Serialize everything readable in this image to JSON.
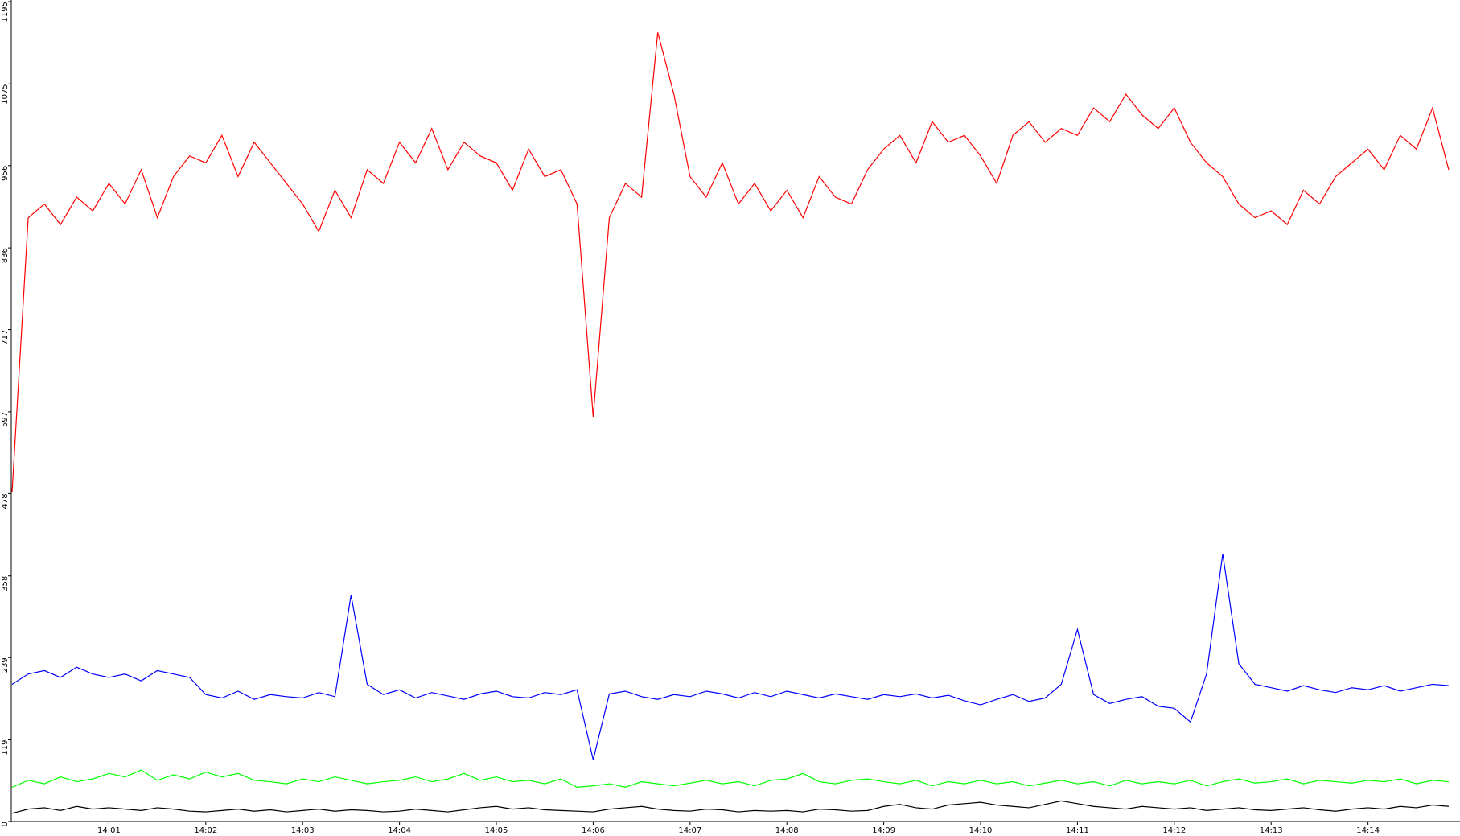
{
  "chart_data": {
    "type": "line",
    "categories": [
      null,
      null,
      null,
      null,
      null,
      null,
      "14:01",
      null,
      null,
      null,
      null,
      null,
      "14:02",
      null,
      null,
      null,
      null,
      null,
      "14:03",
      null,
      null,
      null,
      null,
      null,
      "14:04",
      null,
      null,
      null,
      null,
      null,
      "14:05",
      null,
      null,
      null,
      null,
      null,
      "14:06",
      null,
      null,
      null,
      null,
      null,
      "14:07",
      null,
      null,
      null,
      null,
      null,
      "14:08",
      null,
      null,
      null,
      null,
      null,
      "14:09",
      null,
      null,
      null,
      null,
      null,
      "14:10",
      null,
      null,
      null,
      null,
      null,
      "14:11",
      null,
      null,
      null,
      null,
      null,
      "14:12",
      null,
      null,
      null,
      null,
      null,
      "14:13",
      null,
      null,
      null,
      null,
      null,
      "14:14",
      null,
      null,
      null,
      null,
      null
    ],
    "series": [
      {
        "color": "#ff0000",
        "values": [
          480,
          880,
          900,
          870,
          910,
          890,
          930,
          900,
          950,
          880,
          940,
          970,
          960,
          1000,
          940,
          990,
          960,
          930,
          900,
          860,
          920,
          880,
          950,
          930,
          990,
          960,
          1010,
          950,
          990,
          970,
          960,
          920,
          980,
          940,
          950,
          900,
          590,
          880,
          930,
          910,
          1150,
          1060,
          940,
          910,
          960,
          900,
          930,
          890,
          920,
          880,
          940,
          910,
          900,
          950,
          980,
          1000,
          960,
          1020,
          990,
          1000,
          970,
          930,
          1000,
          1020,
          990,
          1010,
          1000,
          1040,
          1020,
          1060,
          1030,
          1010,
          1040,
          990,
          960,
          940,
          900,
          880,
          890,
          870,
          920,
          900,
          940,
          960,
          980,
          950,
          1000,
          980,
          1040,
          950
        ]
      },
      {
        "color": "#0000ff",
        "values": [
          200,
          215,
          220,
          210,
          225,
          215,
          210,
          215,
          205,
          220,
          215,
          210,
          185,
          180,
          190,
          178,
          185,
          182,
          180,
          188,
          182,
          330,
          200,
          185,
          192,
          180,
          188,
          183,
          178,
          186,
          190,
          182,
          180,
          188,
          185,
          192,
          90,
          186,
          190,
          182,
          178,
          185,
          182,
          190,
          186,
          180,
          188,
          182,
          190,
          185,
          180,
          186,
          182,
          178,
          185,
          182,
          186,
          180,
          184,
          176,
          170,
          178,
          185,
          175,
          180,
          200,
          280,
          185,
          172,
          178,
          182,
          168,
          165,
          145,
          215,
          390,
          230,
          200,
          195,
          190,
          198,
          192,
          188,
          195,
          192,
          198,
          190,
          195,
          200,
          198
        ]
      },
      {
        "color": "#00ff00",
        "values": [
          50,
          60,
          55,
          65,
          58,
          62,
          70,
          65,
          75,
          60,
          68,
          62,
          72,
          65,
          70,
          60,
          58,
          55,
          62,
          58,
          65,
          60,
          55,
          58,
          60,
          65,
          58,
          62,
          70,
          60,
          65,
          58,
          60,
          55,
          62,
          50,
          52,
          55,
          50,
          58,
          55,
          52,
          56,
          60,
          55,
          58,
          52,
          60,
          62,
          70,
          58,
          55,
          60,
          62,
          58,
          55,
          60,
          52,
          58,
          55,
          60,
          55,
          58,
          52,
          56,
          60,
          55,
          58,
          52,
          60,
          55,
          58,
          55,
          60,
          52,
          58,
          62,
          56,
          58,
          62,
          55,
          60,
          58,
          56,
          60,
          58,
          62,
          55,
          60,
          58
        ]
      },
      {
        "color": "#000000",
        "values": [
          12,
          18,
          20,
          16,
          22,
          18,
          20,
          18,
          16,
          20,
          18,
          15,
          14,
          16,
          18,
          15,
          17,
          14,
          16,
          18,
          15,
          17,
          16,
          14,
          15,
          18,
          16,
          14,
          17,
          20,
          22,
          18,
          20,
          17,
          16,
          15,
          14,
          18,
          20,
          22,
          18,
          16,
          15,
          18,
          17,
          14,
          16,
          15,
          16,
          14,
          18,
          17,
          15,
          16,
          22,
          25,
          20,
          18,
          24,
          26,
          28,
          24,
          22,
          20,
          25,
          30,
          26,
          22,
          20,
          18,
          22,
          20,
          18,
          20,
          16,
          18,
          20,
          17,
          16,
          18,
          20,
          17,
          15,
          18,
          20,
          18,
          22,
          20,
          24,
          22
        ]
      }
    ],
    "ylim": [
      0,
      1195
    ],
    "yticks": [
      0,
      119,
      239,
      358,
      478,
      597,
      717,
      836,
      956,
      1075,
      1195
    ]
  }
}
